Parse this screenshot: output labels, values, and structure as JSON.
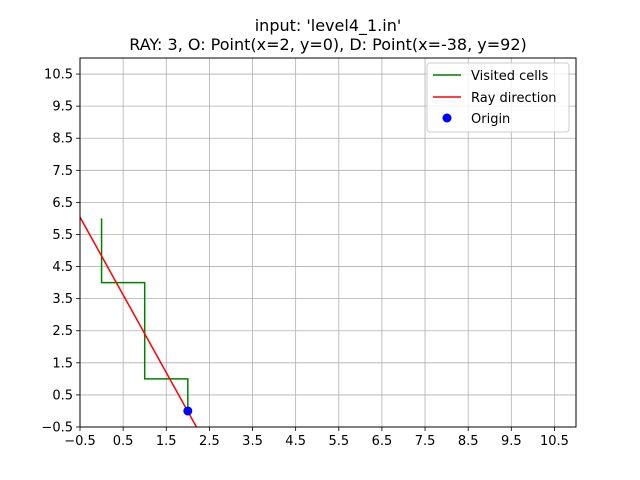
{
  "chart_data": {
    "type": "line",
    "title": "input: 'level4_1.in'",
    "subtitle": "RAY: 3, O: Point(x=2, y=0), D: Point(x=-38, y=92)",
    "xlim": [
      -0.5,
      11.0
    ],
    "ylim": [
      -0.5,
      11.0
    ],
    "xticks": [
      -0.5,
      0.5,
      1.5,
      2.5,
      3.5,
      4.5,
      5.5,
      6.5,
      7.5,
      8.5,
      9.5,
      10.5
    ],
    "yticks": [
      -0.5,
      0.5,
      1.5,
      2.5,
      3.5,
      4.5,
      5.5,
      6.5,
      7.5,
      8.5,
      9.5,
      10.5
    ],
    "xtick_labels": [
      "−0.5",
      "0.5",
      "1.5",
      "2.5",
      "3.5",
      "4.5",
      "5.5",
      "6.5",
      "7.5",
      "8.5",
      "9.5",
      "10.5"
    ],
    "ytick_labels": [
      "−0.5",
      "0.5",
      "1.5",
      "2.5",
      "3.5",
      "4.5",
      "5.5",
      "6.5",
      "7.5",
      "8.5",
      "9.5",
      "10.5"
    ],
    "grid": true,
    "legend_position": "top-right",
    "series": [
      {
        "name": "Visited cells",
        "kind": "line",
        "color": "#008000",
        "points": [
          [
            2,
            0
          ],
          [
            2,
            1
          ],
          [
            1,
            1
          ],
          [
            1,
            4
          ],
          [
            0,
            4
          ],
          [
            0,
            6
          ]
        ]
      },
      {
        "name": "Ray direction",
        "kind": "line",
        "color": "#ff0000",
        "points": [
          [
            2.2,
            -0.5
          ],
          [
            -0.5,
            6.04
          ]
        ]
      },
      {
        "name": "Origin",
        "kind": "scatter",
        "color": "#0000ff",
        "points": [
          [
            2,
            0
          ]
        ]
      }
    ]
  }
}
